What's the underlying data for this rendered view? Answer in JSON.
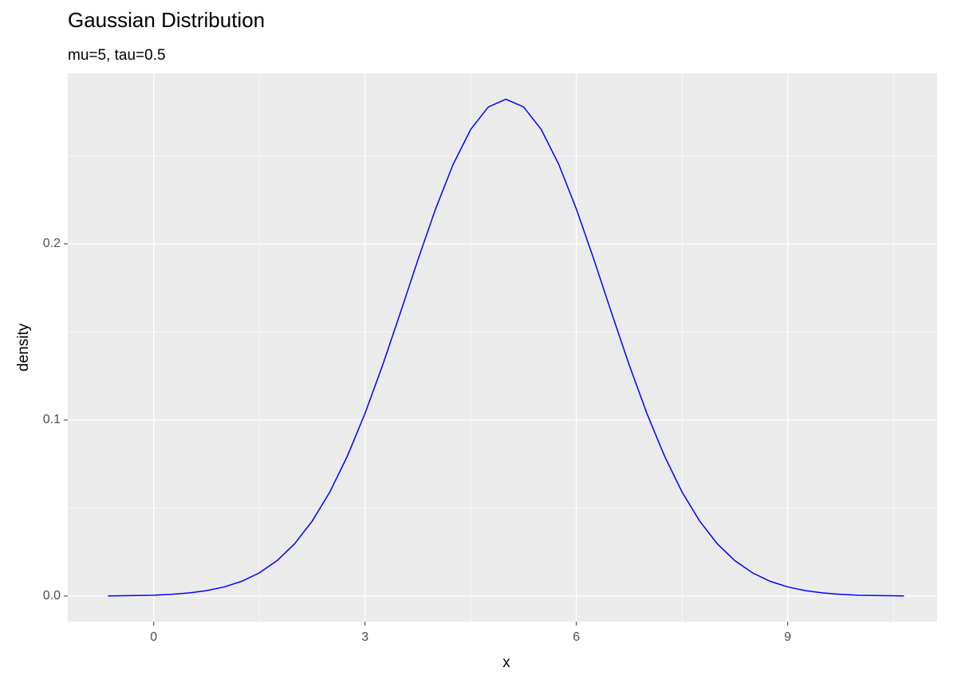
{
  "chart_data": {
    "type": "line",
    "title": "Gaussian Distribution",
    "subtitle": "mu=5, tau=0.5",
    "x_label": "x",
    "y_label": "density",
    "x": [
      -0.65,
      -0.25,
      0,
      0.25,
      0.5,
      0.75,
      1,
      1.25,
      1.5,
      1.75,
      2,
      2.25,
      2.5,
      2.75,
      3,
      3.25,
      3.5,
      3.75,
      4,
      4.25,
      4.5,
      4.75,
      5,
      5.25,
      5.5,
      5.75,
      6,
      6.25,
      6.5,
      6.75,
      7,
      7.25,
      7.5,
      7.75,
      8,
      8.25,
      8.5,
      8.75,
      9,
      9.25,
      9.5,
      9.75,
      10,
      10.25,
      10.65
    ],
    "series": [
      {
        "name": "density",
        "color": "#0000ff",
        "values": [
          0.0001,
          0.0003,
          0.0005,
          0.001,
          0.0018,
          0.0031,
          0.0052,
          0.0084,
          0.0132,
          0.0201,
          0.0297,
          0.0426,
          0.0591,
          0.0796,
          0.1038,
          0.1312,
          0.1607,
          0.1909,
          0.2197,
          0.2451,
          0.265,
          0.2777,
          0.2821,
          0.2777,
          0.265,
          0.2451,
          0.2197,
          0.1909,
          0.1607,
          0.1312,
          0.1038,
          0.0796,
          0.0591,
          0.0426,
          0.0297,
          0.0201,
          0.0132,
          0.0084,
          0.0052,
          0.0031,
          0.0018,
          0.001,
          0.0005,
          0.0003,
          0.0001
        ]
      }
    ],
    "xlim": [
      -1.22,
      11.12
    ],
    "xticks": [
      0,
      3,
      6,
      9
    ],
    "ylim": [
      -0.0145,
      0.2968
    ],
    "yticks": [
      {
        "value": 0,
        "label": "0.0"
      },
      0.1,
      0.2
    ],
    "grid": true
  }
}
